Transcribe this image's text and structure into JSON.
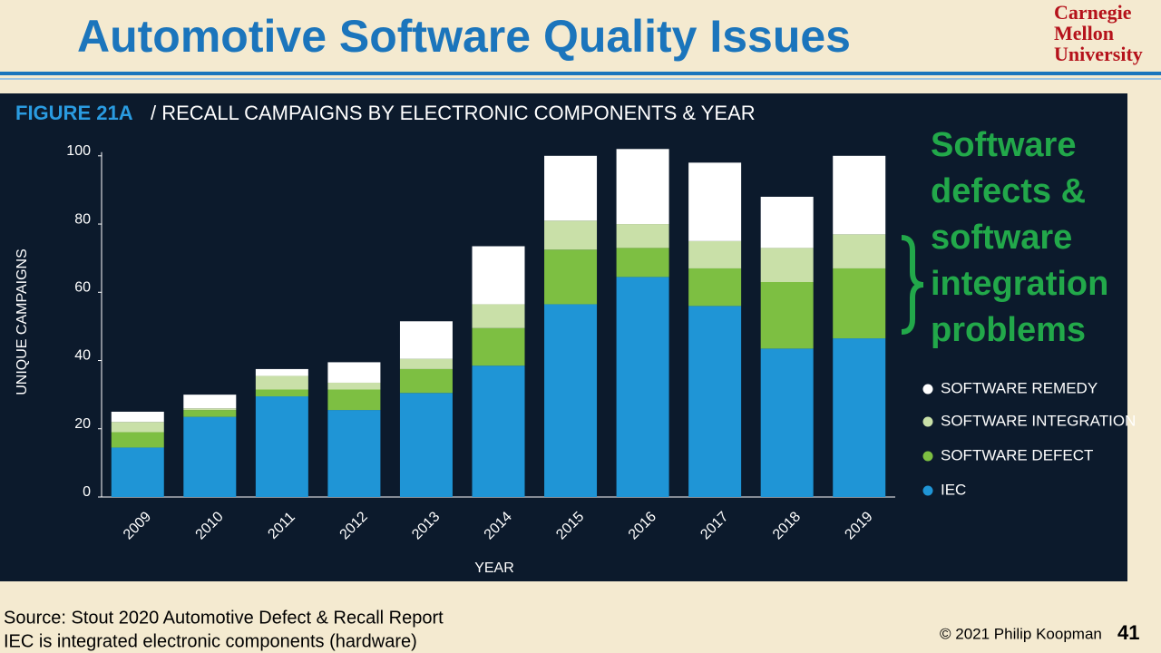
{
  "header": {
    "title": "Automotive Software Quality Issues",
    "logo": [
      "Carnegie",
      "Mellon",
      "University"
    ]
  },
  "chart_data": {
    "type": "stacked_bar",
    "figure_label": "FIGURE 21A",
    "title": "/ RECALL CAMPAIGNS BY ELECTRONIC COMPONENTS & YEAR",
    "x_label": "YEAR",
    "y_label": "UNIQUE CAMPAIGNS",
    "categories": [
      "2009",
      "2010",
      "2011",
      "2012",
      "2013",
      "2014",
      "2015",
      "2016",
      "2017",
      "2018",
      "2019"
    ],
    "series": [
      {
        "name": "IEC",
        "color": "#1f95d6",
        "values": [
          14.5,
          23.5,
          29.5,
          25.5,
          30.5,
          38.5,
          56.5,
          64.5,
          56,
          43.5,
          46.5
        ]
      },
      {
        "name": "SOFTWARE DEFECT",
        "color": "#7dbf42",
        "values": [
          4.5,
          2,
          2,
          6,
          7,
          11,
          16,
          8.5,
          11,
          19.5,
          20.5
        ]
      },
      {
        "name": "SOFTWARE INTEGRATION",
        "color": "#c9e0a8",
        "values": [
          3,
          0.5,
          4,
          2,
          3,
          7,
          8.5,
          7,
          8,
          10,
          10
        ]
      },
      {
        "name": "SOFTWARE REMEDY",
        "color": "#ffffff",
        "values": [
          3,
          4,
          2,
          6,
          11,
          17,
          19,
          22,
          23,
          15,
          23
        ]
      }
    ],
    "ylim": [
      0,
      105
    ],
    "yticks": [
      0,
      20,
      40,
      60,
      80,
      100
    ],
    "annotation": [
      "Software",
      "defects &",
      "software",
      "integration",
      "problems"
    ]
  },
  "footer": {
    "source": [
      "Source: Stout 2020 Automotive Defect & Recall Report",
      "IEC is integrated electronic components (hardware)"
    ],
    "copyright": "© 2021 Philip Koopman",
    "page": "41"
  }
}
